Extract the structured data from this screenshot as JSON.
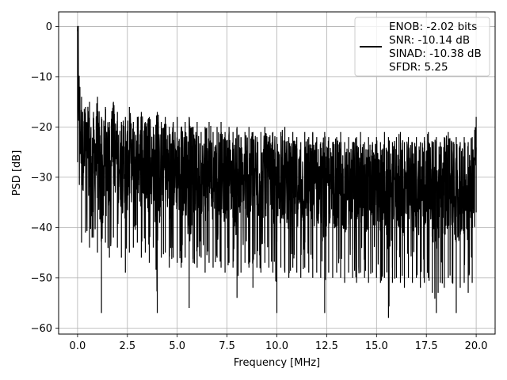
{
  "chart_data": {
    "type": "line",
    "title": "",
    "xlabel": "Frequency [MHz]",
    "ylabel": "PSD [dB]",
    "xlim": [
      -0.95,
      20.95
    ],
    "ylim": [
      -61.2,
      2.9
    ],
    "xticks": [
      0.0,
      2.5,
      5.0,
      7.5,
      10.0,
      12.5,
      15.0,
      17.5,
      20.0
    ],
    "xtick_labels": [
      "0.0",
      "2.5",
      "5.0",
      "7.5",
      "10.0",
      "12.5",
      "15.0",
      "17.5",
      "20.0"
    ],
    "yticks": [
      0,
      -10,
      -20,
      -30,
      -40,
      -50,
      -60
    ],
    "ytick_labels": [
      "0",
      "−10",
      "−20",
      "−30",
      "−40",
      "−50",
      "−60"
    ],
    "grid": true,
    "legend_position": "top-right",
    "legend_lines": [
      "ENOB: -2.02 bits",
      "SNR: -10.14 dB",
      "SINAD: -10.38 dB",
      "SFDR: 5.25"
    ],
    "colors": {
      "series": "#000000",
      "grid": "#b0b0b0",
      "axes": "#000000"
    },
    "series": [
      {
        "x": [
          0.0,
          0.2,
          0.4,
          0.6,
          0.8,
          1.0,
          1.2,
          1.4,
          1.6,
          1.8,
          2.0,
          2.2,
          2.4,
          2.6,
          2.8,
          3.0,
          3.2,
          3.4,
          3.6,
          3.8,
          4.0,
          4.2,
          4.4,
          4.6,
          4.8,
          5.0,
          5.2,
          5.4,
          5.6,
          5.8,
          6.0,
          6.2,
          6.4,
          6.6,
          6.8,
          7.0,
          7.2,
          7.4,
          7.6,
          7.8,
          8.0,
          8.2,
          8.4,
          8.6,
          8.8,
          9.0,
          9.2,
          9.4,
          9.6,
          9.8,
          10.0,
          10.2,
          10.4,
          10.6,
          10.8,
          11.0,
          11.2,
          11.4,
          11.6,
          11.8,
          12.0,
          12.2,
          12.4,
          12.6,
          12.8,
          13.0,
          13.2,
          13.4,
          13.6,
          13.8,
          14.0,
          14.2,
          14.4,
          14.6,
          14.8,
          15.0,
          15.2,
          15.4,
          15.6,
          15.8,
          16.0,
          16.2,
          16.4,
          16.6,
          16.8,
          17.0,
          17.2,
          17.4,
          17.6,
          17.8,
          18.0,
          18.2,
          18.4,
          18.6,
          18.8,
          19.0,
          19.2,
          19.4,
          19.6,
          19.8,
          20.0
        ],
        "upper": [
          0,
          -14,
          -16,
          -15,
          -17,
          -14,
          -18,
          -16,
          -19,
          -15,
          -17,
          -19,
          -18,
          -16,
          -19,
          -18,
          -17,
          -19,
          -18,
          -20,
          -17,
          -19,
          -18,
          -20,
          -19,
          -18,
          -20,
          -19,
          -18,
          -20,
          -19,
          -21,
          -20,
          -19,
          -21,
          -20,
          -19,
          -21,
          -20,
          -21,
          -20,
          -22,
          -21,
          -20,
          -21,
          -22,
          -21,
          -20,
          -22,
          -21,
          -22,
          -21,
          -20,
          -22,
          -21,
          -22,
          -23,
          -21,
          -22,
          -21,
          -22,
          -23,
          -21,
          -22,
          -23,
          -22,
          -21,
          -23,
          -22,
          -23,
          -22,
          -21,
          -23,
          -22,
          -23,
          -22,
          -23,
          -21,
          -22,
          -23,
          -22,
          -21,
          -23,
          -22,
          -23,
          -22,
          -23,
          -22,
          -21,
          -23,
          -22,
          -23,
          -22,
          -21,
          -23,
          -22,
          -23,
          -22,
          -23,
          -22,
          -18
        ],
        "lower": [
          -27,
          -43,
          -41,
          -44,
          -42,
          -45,
          -57,
          -43,
          -46,
          -42,
          -44,
          -46,
          -49,
          -45,
          -44,
          -43,
          -46,
          -45,
          -47,
          -44,
          -57,
          -46,
          -45,
          -48,
          -46,
          -47,
          -48,
          -46,
          -56,
          -47,
          -48,
          -46,
          -49,
          -47,
          -48,
          -46,
          -48,
          -49,
          -47,
          -48,
          -54,
          -49,
          -47,
          -48,
          -52,
          -48,
          -49,
          -47,
          -48,
          -49,
          -57,
          -48,
          -49,
          -50,
          -48,
          -49,
          -50,
          -48,
          -49,
          -50,
          -49,
          -50,
          -57,
          -49,
          -50,
          -49,
          -50,
          -51,
          -49,
          -50,
          -51,
          -49,
          -50,
          -51,
          -49,
          -50,
          -51,
          -50,
          -58,
          -51,
          -50,
          -51,
          -52,
          -50,
          -51,
          -50,
          -52,
          -51,
          -50,
          -53,
          -57,
          -51,
          -52,
          -50,
          -51,
          -57,
          -52,
          -51,
          -53,
          -51,
          -37
        ]
      }
    ]
  }
}
